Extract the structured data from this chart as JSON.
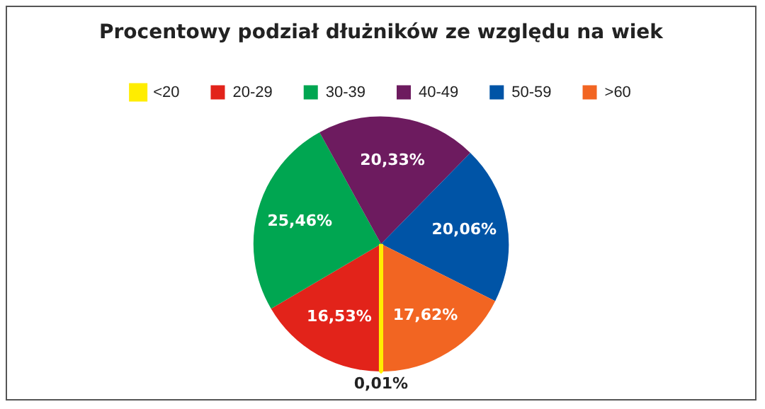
{
  "chart_data": {
    "type": "pie",
    "title": "Procentowy podział dłużników ze względu na wiek",
    "categories": [
      "<20",
      "20-29",
      "30-39",
      "40-49",
      "50-59",
      ">60"
    ],
    "values": [
      0.01,
      16.53,
      25.46,
      20.33,
      20.06,
      17.62
    ],
    "colors": [
      "#ffed00",
      "#e2231a",
      "#00a651",
      "#6d1b5f",
      "#0054a6",
      "#f26522"
    ],
    "value_labels": [
      "0,01%",
      "16,53%",
      "25,46%",
      "20,33%",
      "20,06%",
      "17,62%"
    ],
    "legend": "top"
  }
}
